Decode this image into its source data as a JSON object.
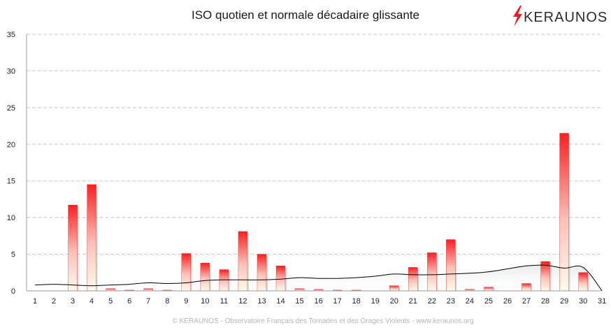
{
  "logo": {
    "text": "KERAUNOS",
    "bolt_color": "#e41e26"
  },
  "footer": "© KERAUNOS - Observatoire Français des Tornades et des Orages Violents - www.keraunos.org",
  "colors": {
    "bar_top": "#ff1f1f",
    "bar_bottom": "#fffbea",
    "line": "#000000",
    "grid": "#c8c8c8"
  },
  "chart_data": {
    "type": "bar",
    "title": "ISO quotien et normale décadaire glissante",
    "xlabel": "",
    "ylabel": "",
    "categories": [
      "1",
      "2",
      "3",
      "4",
      "5",
      "6",
      "7",
      "8",
      "9",
      "10",
      "11",
      "12",
      "13",
      "14",
      "15",
      "16",
      "17",
      "18",
      "19",
      "20",
      "21",
      "22",
      "23",
      "24",
      "25",
      "26",
      "27",
      "28",
      "29",
      "30",
      "31"
    ],
    "ylim": [
      0,
      35
    ],
    "yticks": [
      0,
      5,
      10,
      15,
      20,
      25,
      30,
      35
    ],
    "grid": true,
    "series": [
      {
        "kind": "bar",
        "values": [
          0,
          0,
          11.7,
          14.5,
          0.3,
          0.1,
          0.3,
          0.1,
          5.1,
          3.8,
          2.9,
          8.1,
          5.0,
          3.4,
          0.3,
          0.2,
          0.1,
          0.1,
          0,
          0.7,
          3.2,
          5.2,
          7.0,
          0.2,
          0.5,
          0,
          1.0,
          4.0,
          21.5,
          2.5,
          0
        ]
      },
      {
        "kind": "line",
        "values": [
          0.8,
          0.9,
          0.8,
          0.7,
          0.8,
          0.9,
          1.1,
          1.0,
          1.1,
          1.4,
          1.5,
          1.5,
          1.5,
          1.6,
          1.8,
          1.7,
          1.7,
          1.8,
          2.0,
          2.3,
          2.2,
          2.2,
          2.3,
          2.4,
          2.6,
          3.0,
          3.4,
          3.5,
          3.1,
          3.2,
          0
        ]
      }
    ]
  }
}
